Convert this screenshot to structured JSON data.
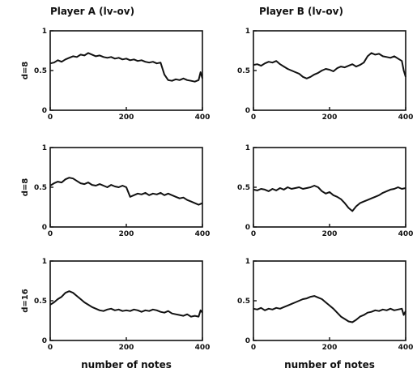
{
  "chart_data": [
    {
      "type": "line",
      "panel": "A1",
      "column_title": "Player A (lv-ov)",
      "ylabel": "d=8",
      "xlabel": "",
      "xlim": [
        0,
        400
      ],
      "ylim": [
        0,
        1
      ],
      "xticks": [
        0,
        200,
        400
      ],
      "yticks": [
        0,
        0.5,
        1
      ],
      "xtick_labels": [
        "0",
        "200",
        "400"
      ],
      "ytick_labels": [
        "0",
        "0.5",
        "1"
      ],
      "series": [
        {
          "x": [
            0,
            10,
            20,
            30,
            40,
            50,
            60,
            70,
            80,
            90,
            100,
            110,
            120,
            130,
            140,
            150,
            160,
            170,
            180,
            190,
            200,
            210,
            220,
            230,
            240,
            250,
            260,
            270,
            280,
            290,
            300,
            310,
            320,
            330,
            340,
            350,
            360,
            370,
            380,
            390,
            395,
            400
          ],
          "y": [
            0.59,
            0.6,
            0.63,
            0.61,
            0.64,
            0.66,
            0.68,
            0.67,
            0.7,
            0.69,
            0.72,
            0.7,
            0.68,
            0.69,
            0.67,
            0.66,
            0.67,
            0.65,
            0.66,
            0.64,
            0.65,
            0.63,
            0.64,
            0.62,
            0.63,
            0.61,
            0.6,
            0.61,
            0.59,
            0.6,
            0.45,
            0.38,
            0.37,
            0.39,
            0.38,
            0.4,
            0.38,
            0.37,
            0.36,
            0.38,
            0.48,
            0.4
          ]
        }
      ]
    },
    {
      "type": "line",
      "panel": "B1",
      "column_title": "Player B (lv-ov)",
      "ylabel": "",
      "xlabel": "",
      "xlim": [
        0,
        400
      ],
      "ylim": [
        0,
        1
      ],
      "xticks": [
        0,
        200,
        400
      ],
      "yticks": [
        0,
        0.5,
        1
      ],
      "xtick_labels": [
        "0",
        "200",
        "400"
      ],
      "ytick_labels": [
        "0",
        "0.5",
        "1"
      ],
      "series": [
        {
          "x": [
            0,
            10,
            20,
            30,
            40,
            50,
            60,
            70,
            80,
            90,
            100,
            110,
            120,
            130,
            140,
            150,
            160,
            170,
            180,
            190,
            200,
            210,
            220,
            230,
            240,
            250,
            260,
            270,
            280,
            290,
            300,
            310,
            320,
            330,
            340,
            350,
            360,
            370,
            380,
            390,
            395,
            400
          ],
          "y": [
            0.57,
            0.58,
            0.56,
            0.59,
            0.61,
            0.6,
            0.62,
            0.58,
            0.55,
            0.52,
            0.5,
            0.48,
            0.46,
            0.42,
            0.4,
            0.42,
            0.45,
            0.47,
            0.5,
            0.52,
            0.51,
            0.49,
            0.53,
            0.55,
            0.54,
            0.56,
            0.58,
            0.55,
            0.57,
            0.6,
            0.68,
            0.72,
            0.7,
            0.71,
            0.68,
            0.67,
            0.66,
            0.68,
            0.65,
            0.62,
            0.5,
            0.42
          ]
        }
      ]
    },
    {
      "type": "line",
      "panel": "A2",
      "column_title": "",
      "ylabel": "d=8",
      "xlabel": "",
      "xlim": [
        0,
        400
      ],
      "ylim": [
        0,
        1
      ],
      "xticks": [
        0,
        200,
        400
      ],
      "yticks": [
        0,
        0.5,
        1
      ],
      "xtick_labels": [
        "0",
        "200",
        "400"
      ],
      "ytick_labels": [
        "0",
        "0.5",
        "1"
      ],
      "series": [
        {
          "x": [
            0,
            10,
            20,
            30,
            40,
            50,
            60,
            70,
            80,
            90,
            100,
            110,
            120,
            130,
            140,
            150,
            160,
            170,
            180,
            190,
            200,
            210,
            220,
            230,
            240,
            250,
            260,
            270,
            280,
            290,
            300,
            310,
            320,
            330,
            340,
            350,
            360,
            370,
            380,
            390,
            400
          ],
          "y": [
            0.52,
            0.55,
            0.57,
            0.56,
            0.6,
            0.62,
            0.61,
            0.58,
            0.55,
            0.54,
            0.56,
            0.53,
            0.52,
            0.54,
            0.52,
            0.5,
            0.53,
            0.51,
            0.5,
            0.52,
            0.5,
            0.38,
            0.4,
            0.42,
            0.41,
            0.43,
            0.4,
            0.42,
            0.41,
            0.43,
            0.4,
            0.42,
            0.4,
            0.38,
            0.36,
            0.37,
            0.34,
            0.32,
            0.3,
            0.28,
            0.3
          ]
        }
      ]
    },
    {
      "type": "line",
      "panel": "B2",
      "column_title": "",
      "ylabel": "",
      "xlabel": "",
      "xlim": [
        0,
        400
      ],
      "ylim": [
        0,
        1
      ],
      "xticks": [
        0,
        200,
        400
      ],
      "yticks": [
        0,
        0.5,
        1
      ],
      "xtick_labels": [
        "0",
        "200",
        "400"
      ],
      "ytick_labels": [
        "0",
        "0.5",
        "1"
      ],
      "series": [
        {
          "x": [
            0,
            10,
            20,
            30,
            40,
            50,
            60,
            70,
            80,
            90,
            100,
            110,
            120,
            130,
            140,
            150,
            160,
            170,
            180,
            190,
            200,
            210,
            220,
            230,
            240,
            250,
            260,
            270,
            280,
            290,
            300,
            310,
            320,
            330,
            340,
            350,
            360,
            370,
            380,
            390,
            400
          ],
          "y": [
            0.47,
            0.46,
            0.48,
            0.47,
            0.45,
            0.48,
            0.46,
            0.49,
            0.47,
            0.5,
            0.48,
            0.49,
            0.5,
            0.48,
            0.49,
            0.5,
            0.52,
            0.5,
            0.45,
            0.42,
            0.44,
            0.4,
            0.38,
            0.35,
            0.3,
            0.24,
            0.2,
            0.26,
            0.3,
            0.32,
            0.34,
            0.36,
            0.38,
            0.4,
            0.43,
            0.45,
            0.47,
            0.48,
            0.5,
            0.48,
            0.49
          ]
        }
      ]
    },
    {
      "type": "line",
      "panel": "A3",
      "column_title": "",
      "ylabel": "d=16",
      "xlabel": "number of notes",
      "xlim": [
        0,
        400
      ],
      "ylim": [
        0,
        1
      ],
      "xticks": [
        0,
        200,
        400
      ],
      "yticks": [
        0,
        0.5,
        1
      ],
      "xtick_labels": [
        "0",
        "200",
        "400"
      ],
      "ytick_labels": [
        "0",
        "0.5",
        "1"
      ],
      "series": [
        {
          "x": [
            0,
            10,
            20,
            30,
            40,
            50,
            60,
            70,
            80,
            90,
            100,
            110,
            120,
            130,
            140,
            150,
            160,
            170,
            180,
            190,
            200,
            210,
            220,
            230,
            240,
            250,
            260,
            270,
            280,
            290,
            300,
            310,
            320,
            330,
            340,
            350,
            360,
            370,
            380,
            390,
            395,
            400
          ],
          "y": [
            0.45,
            0.48,
            0.52,
            0.55,
            0.6,
            0.62,
            0.6,
            0.56,
            0.52,
            0.48,
            0.45,
            0.42,
            0.4,
            0.38,
            0.37,
            0.39,
            0.4,
            0.38,
            0.39,
            0.37,
            0.38,
            0.37,
            0.39,
            0.38,
            0.36,
            0.38,
            0.37,
            0.39,
            0.38,
            0.36,
            0.35,
            0.37,
            0.34,
            0.33,
            0.32,
            0.31,
            0.33,
            0.3,
            0.31,
            0.3,
            0.38,
            0.35
          ]
        }
      ]
    },
    {
      "type": "line",
      "panel": "B3",
      "column_title": "",
      "ylabel": "",
      "xlabel": "number of notes",
      "xlim": [
        0,
        400
      ],
      "ylim": [
        0,
        1
      ],
      "xticks": [
        0,
        200,
        400
      ],
      "yticks": [
        0,
        0.5,
        1
      ],
      "xtick_labels": [
        "0",
        "200",
        "400"
      ],
      "ytick_labels": [
        "0",
        "0.5",
        "1"
      ],
      "series": [
        {
          "x": [
            0,
            10,
            20,
            30,
            40,
            50,
            60,
            70,
            80,
            90,
            100,
            110,
            120,
            130,
            140,
            150,
            160,
            170,
            180,
            190,
            200,
            210,
            220,
            230,
            240,
            250,
            260,
            270,
            280,
            290,
            300,
            310,
            320,
            330,
            340,
            350,
            360,
            370,
            380,
            390,
            395,
            400
          ],
          "y": [
            0.4,
            0.39,
            0.41,
            0.38,
            0.4,
            0.39,
            0.41,
            0.4,
            0.42,
            0.44,
            0.46,
            0.48,
            0.5,
            0.52,
            0.53,
            0.55,
            0.56,
            0.54,
            0.52,
            0.48,
            0.44,
            0.4,
            0.35,
            0.3,
            0.27,
            0.24,
            0.23,
            0.26,
            0.3,
            0.32,
            0.35,
            0.36,
            0.38,
            0.37,
            0.39,
            0.38,
            0.4,
            0.38,
            0.39,
            0.4,
            0.32,
            0.37
          ]
        }
      ]
    }
  ]
}
